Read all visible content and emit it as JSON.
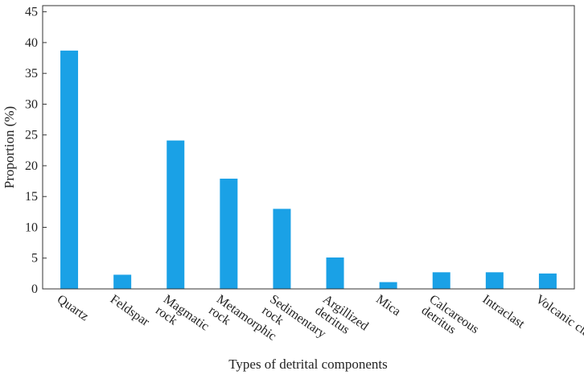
{
  "chart_data": {
    "type": "bar",
    "xlabel": "Types of detrital components",
    "ylabel": "Proportion (%)",
    "ylim": [
      0,
      46
    ],
    "yticks": [
      0,
      5,
      10,
      15,
      20,
      25,
      30,
      35,
      40,
      45
    ],
    "categories": [
      [
        "Quartz"
      ],
      [
        "Feldspar"
      ],
      [
        "Magmatic",
        "rock"
      ],
      [
        "Metamorphic",
        "rock"
      ],
      [
        "Sedimentary",
        "rock"
      ],
      [
        "Argillized",
        "detritus"
      ],
      [
        "Mica"
      ],
      [
        "Calcareous",
        "detritus"
      ],
      [
        "Intraclast"
      ],
      [
        "Volcanic clast"
      ]
    ],
    "values": [
      38.7,
      2.3,
      24.1,
      17.9,
      13.0,
      5.1,
      1.1,
      2.7,
      2.7,
      2.5
    ],
    "bar_color": "#1aa1e6",
    "grid": false,
    "legend": "none"
  }
}
